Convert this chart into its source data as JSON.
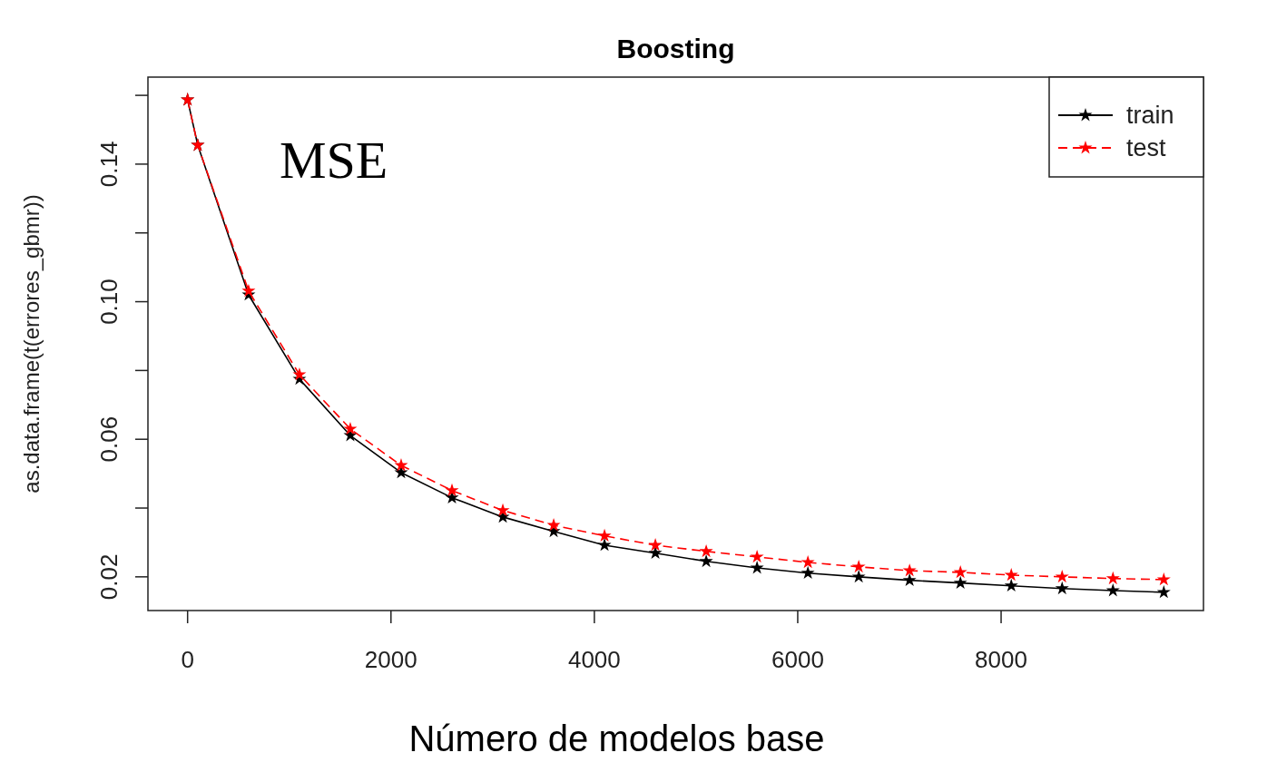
{
  "chart_data": {
    "type": "line",
    "title": "Boosting",
    "xlabel": "Número de modelos base",
    "ylabel": "as.data.frame(t(errores_gbmr))",
    "annotations": [
      "MSE"
    ],
    "x": [
      0,
      100,
      600,
      1100,
      1600,
      2100,
      2600,
      3100,
      3600,
      4100,
      4600,
      5100,
      5600,
      6100,
      6600,
      7100,
      7600,
      8100,
      8600,
      9100,
      9600
    ],
    "series": [
      {
        "name": "train",
        "color": "#000000",
        "line_style": "solid",
        "values": [
          0.1587,
          0.1455,
          0.102,
          0.0775,
          0.0611,
          0.0503,
          0.043,
          0.0374,
          0.0332,
          0.0292,
          0.0269,
          0.0245,
          0.0226,
          0.0211,
          0.02,
          0.019,
          0.0182,
          0.0174,
          0.0166,
          0.016,
          0.0155
        ]
      },
      {
        "name": "test",
        "color": "#ff0000",
        "line_style": "dashed",
        "values": [
          0.1587,
          0.1455,
          0.1031,
          0.0788,
          0.063,
          0.0524,
          0.0451,
          0.0393,
          0.035,
          0.0319,
          0.0292,
          0.0274,
          0.0258,
          0.0242,
          0.0229,
          0.0218,
          0.0213,
          0.0205,
          0.02,
          0.0195,
          0.0192
        ]
      }
    ],
    "xlim": [
      -390,
      9990
    ],
    "xticks": [
      0,
      2000,
      4000,
      6000,
      8000
    ],
    "ylim": [
      0.0102,
      0.1653
    ],
    "yticks": [
      0.02,
      {
        "value": 0.04,
        "label": null
      },
      0.06,
      {
        "value": 0.08,
        "label": null
      },
      {
        "value": 0.1,
        "label": "0.10"
      },
      {
        "value": 0.12,
        "label": null
      },
      0.14,
      {
        "value": 0.16,
        "label": null
      }
    ],
    "marker": "star",
    "legend": "top right",
    "grid": false
  }
}
